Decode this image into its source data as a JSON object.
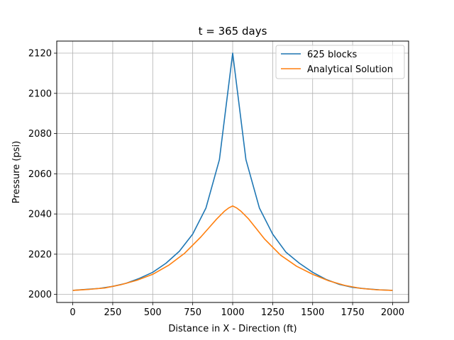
{
  "chart_data": {
    "type": "line",
    "title": "t = 365 days",
    "xlabel": "Distance in X - Direction (ft)",
    "ylabel": "Pressure (psi)",
    "xlim": [
      -100,
      2100
    ],
    "ylim": [
      1996,
      2126
    ],
    "grid": true,
    "legend_position": "top-right",
    "xticks": [
      "0",
      "250",
      "500",
      "750",
      "1000",
      "1250",
      "1500",
      "1750",
      "2000"
    ],
    "yticks": [
      "2000",
      "2020",
      "2040",
      "2060",
      "2080",
      "2100",
      "2120"
    ],
    "series": [
      {
        "name": "625 blocks",
        "color": "#1f77b4",
        "x": [
          0,
          83,
          167,
          250,
          333,
          417,
          500,
          583,
          667,
          750,
          833,
          917,
          1000,
          1083,
          1167,
          1250,
          1333,
          1417,
          1500,
          1583,
          1667,
          1750,
          1833,
          1917,
          2000
        ],
        "y": [
          2002,
          2002.5,
          2003,
          2004,
          2005.5,
          2008,
          2011,
          2015.5,
          2021.5,
          2030,
          2043,
          2067,
          2120,
          2067,
          2043,
          2030,
          2021,
          2015.5,
          2011,
          2007.5,
          2005,
          2003.5,
          2002.8,
          2002.3,
          2002
        ]
      },
      {
        "name": "Analytical Solution",
        "color": "#ff7f0e",
        "x": [
          0,
          100,
          200,
          300,
          400,
          500,
          600,
          700,
          800,
          850,
          900,
          950,
          975,
          1000,
          1025,
          1050,
          1100,
          1150,
          1200,
          1300,
          1400,
          1500,
          1600,
          1700,
          1800,
          1900,
          2000
        ],
        "y": [
          2002,
          2002.5,
          2003.2,
          2004.8,
          2007,
          2010,
          2014.5,
          2020.5,
          2028.5,
          2033,
          2037.5,
          2041.5,
          2043,
          2044,
          2043,
          2041.5,
          2037.5,
          2032.5,
          2027.5,
          2019.5,
          2014,
          2010,
          2006.8,
          2004.5,
          2003,
          2002.3,
          2002
        ]
      }
    ]
  }
}
